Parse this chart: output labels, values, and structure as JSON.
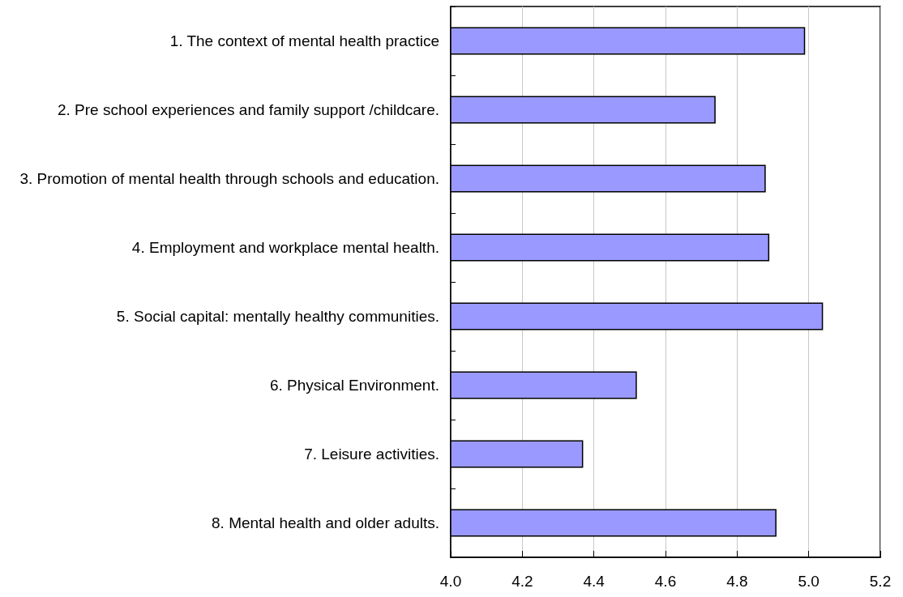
{
  "chart_data": {
    "type": "bar",
    "orientation": "horizontal",
    "categories": [
      "1. The context of mental health practice",
      "2. Pre school experiences and family support /childcare.",
      "3. Promotion of mental health through schools and education.",
      "4. Employment and workplace mental health.",
      "5. Social capital: mentally healthy communities.",
      "6. Physical Environment.",
      "7. Leisure activities.",
      "8. Mental health and older adults."
    ],
    "values": [
      4.99,
      4.74,
      4.88,
      4.89,
      5.04,
      4.52,
      4.37,
      4.91
    ],
    "color": "#9999ff",
    "xlim": [
      4.0,
      5.2
    ],
    "xticks": [
      {
        "value": 4.0,
        "label": "4.0"
      },
      {
        "value": 4.2,
        "label": "4.2"
      },
      {
        "value": 4.4,
        "label": "4.4"
      },
      {
        "value": 4.6,
        "label": "4.6"
      },
      {
        "value": 4.8,
        "label": "4.8"
      },
      {
        "value": 5.0,
        "label": "5.0"
      },
      {
        "value": 5.2,
        "label": "5.2"
      }
    ],
    "grid": "x"
  }
}
